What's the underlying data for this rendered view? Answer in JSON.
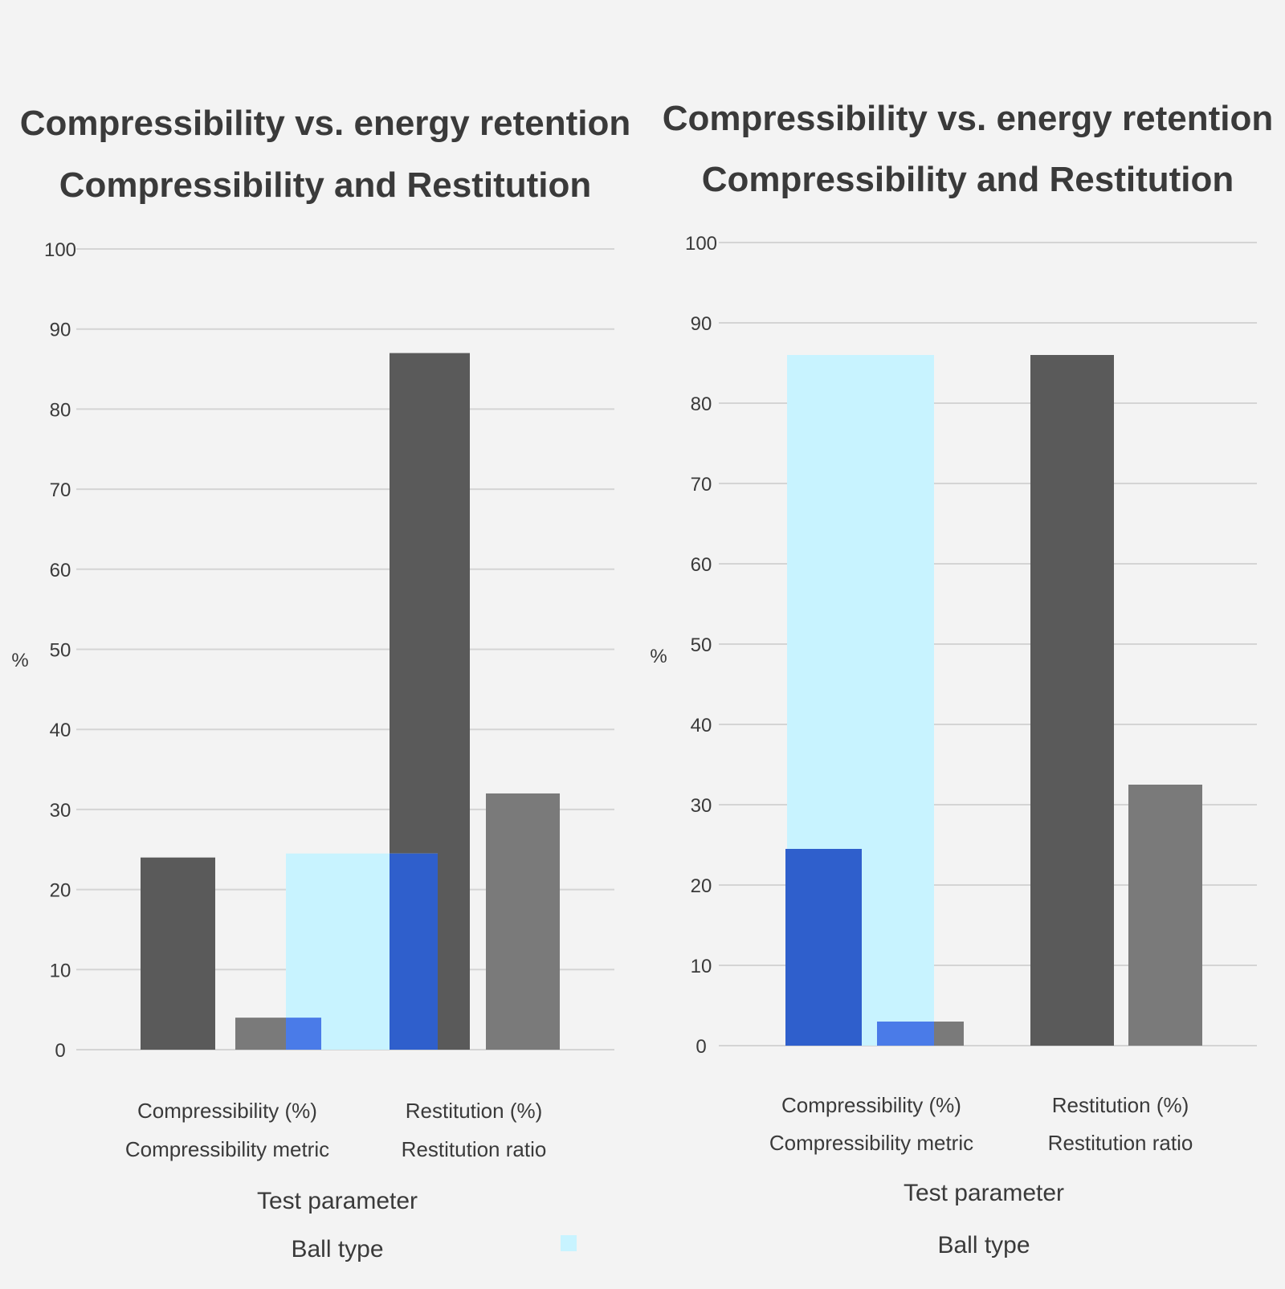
{
  "colors": {
    "background": "#f3f3f3",
    "dark": "#5a5a5a",
    "gray": "#7a7a7a",
    "blue": "#2f5fcc",
    "bright_blue": "#4a7be8",
    "light_cyan": "#c8f3ff",
    "grid": "#d4d4d4"
  },
  "chart_data": [
    {
      "type": "bar",
      "title": [
        "Compressibility vs. energy retention",
        "Compressibility and Restitution"
      ],
      "xlabel": "Test parameter",
      "ylabel": "%",
      "ylim": [
        0,
        100
      ],
      "yticks": [
        0,
        10,
        20,
        30,
        40,
        50,
        60,
        70,
        80,
        90,
        100
      ],
      "grid": true,
      "categories": [
        "Compressibility (%)",
        "Restitution (%)"
      ],
      "category_sublabels": [
        "Compressibility metric",
        "Restitution ratio"
      ],
      "legend": {
        "title": "Ball type",
        "placement": "bottom"
      },
      "series": [
        {
          "color": "#5a5a5a",
          "values": [
            24,
            87
          ]
        },
        {
          "color": "#7a7a7a",
          "values": [
            4,
            32
          ]
        },
        {
          "color": "#c8f3ff",
          "values": [
            24.5,
            null
          ]
        },
        {
          "color": "#4a7be8",
          "values": [
            4,
            null
          ]
        },
        {
          "color": "#2f5fcc",
          "values": [
            null,
            24.5
          ]
        }
      ]
    },
    {
      "type": "bar",
      "title": [
        "Compressibility vs. energy retention",
        "Compressibility and Restitution"
      ],
      "xlabel": "Test parameter",
      "ylabel": "%",
      "ylim": [
        0,
        100
      ],
      "yticks": [
        0,
        10,
        20,
        30,
        40,
        50,
        60,
        70,
        80,
        90,
        100
      ],
      "grid": true,
      "categories": [
        "Compressibility (%)",
        "Restitution (%)"
      ],
      "category_sublabels": [
        "Compressibility metric",
        "Restitution ratio"
      ],
      "legend": {
        "title": "Ball type",
        "placement": "bottom"
      },
      "series": [
        {
          "color": "#c8f3ff",
          "values": [
            86,
            null
          ]
        },
        {
          "color": "#2f5fcc",
          "values": [
            24.5,
            null
          ]
        },
        {
          "color": "#4a7be8",
          "values": [
            3,
            null
          ]
        },
        {
          "color": "#7a7a7a",
          "values": [
            3,
            32.5
          ]
        },
        {
          "color": "#5a5a5a",
          "values": [
            null,
            86
          ]
        }
      ]
    }
  ]
}
